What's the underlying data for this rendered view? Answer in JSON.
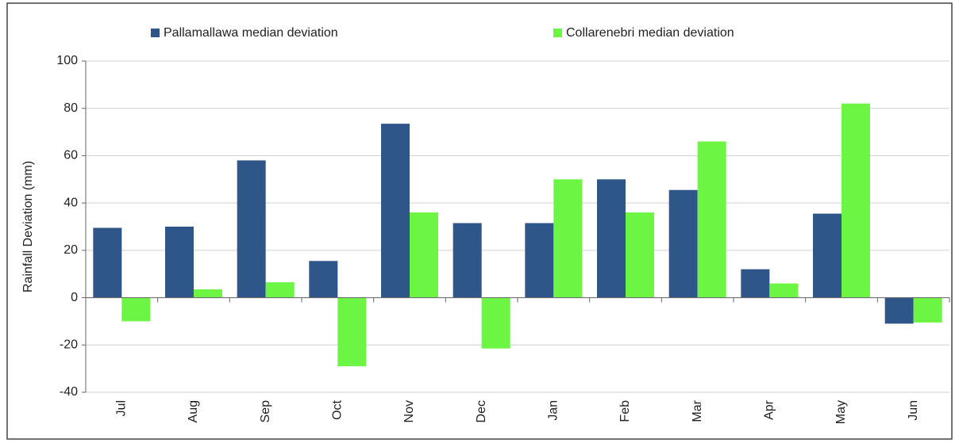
{
  "chart_data": {
    "type": "bar",
    "categories": [
      "Jul",
      "Aug",
      "Sep",
      "Oct",
      "Nov",
      "Dec",
      "Jan",
      "Feb",
      "Mar",
      "Apr",
      "May",
      "Jun"
    ],
    "series": [
      {
        "name": "Pallamallawa median deviation",
        "color": "#2f5689",
        "values": [
          29.5,
          30,
          58,
          15.5,
          73.5,
          31.5,
          31.5,
          50,
          45.5,
          12,
          35.5,
          -11
        ]
      },
      {
        "name": "Collarenebri median deviation",
        "color": "#6cf542",
        "values": [
          -10,
          3.5,
          6.5,
          -29,
          36,
          -21.5,
          50,
          36,
          66,
          6,
          82,
          -10.5
        ]
      }
    ],
    "y_axis_label": "Rainfall Deviation (mm)",
    "ylim": [
      -40,
      100
    ],
    "yticks": [
      -40,
      -20,
      0,
      20,
      40,
      60,
      80,
      100
    ],
    "grid": true,
    "legend": "top"
  }
}
